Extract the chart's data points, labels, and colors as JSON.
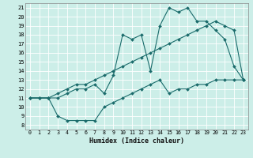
{
  "xlabel": "Humidex (Indice chaleur)",
  "ylabel": "",
  "background_color": "#cceee8",
  "line_color": "#1a6b6b",
  "xlim": [
    -0.5,
    23.5
  ],
  "ylim": [
    7.5,
    21.5
  ],
  "yticks": [
    8,
    9,
    10,
    11,
    12,
    13,
    14,
    15,
    16,
    17,
    18,
    19,
    20,
    21
  ],
  "xticks": [
    0,
    1,
    2,
    3,
    4,
    5,
    6,
    7,
    8,
    9,
    10,
    11,
    12,
    13,
    14,
    15,
    16,
    17,
    18,
    19,
    20,
    21,
    22,
    23
  ],
  "series1_x": [
    0,
    1,
    2,
    3,
    4,
    5,
    6,
    7,
    8,
    9,
    10,
    11,
    12,
    13,
    14,
    15,
    16,
    17,
    18,
    19,
    20,
    21,
    22,
    23
  ],
  "series1_y": [
    11.0,
    11.0,
    11.0,
    11.0,
    11.5,
    12.0,
    12.0,
    12.5,
    11.5,
    13.5,
    18.0,
    17.5,
    18.0,
    14.0,
    19.0,
    21.0,
    20.5,
    21.0,
    19.5,
    19.5,
    18.5,
    17.5,
    14.5,
    13.0
  ],
  "series2_x": [
    0,
    1,
    2,
    3,
    4,
    5,
    6,
    7,
    8,
    9,
    10,
    11,
    12,
    13,
    14,
    15,
    16,
    17,
    18,
    19,
    20,
    21,
    22,
    23
  ],
  "series2_y": [
    11.0,
    11.0,
    11.0,
    11.5,
    12.0,
    12.5,
    12.5,
    13.0,
    13.5,
    14.0,
    14.5,
    15.0,
    15.5,
    16.0,
    16.5,
    17.0,
    17.5,
    18.0,
    18.5,
    19.0,
    19.5,
    19.0,
    18.5,
    13.0
  ],
  "series3_x": [
    0,
    1,
    2,
    3,
    4,
    5,
    6,
    7,
    8,
    9,
    10,
    11,
    12,
    13,
    14,
    15,
    16,
    17,
    18,
    19,
    20,
    21,
    22,
    23
  ],
  "series3_y": [
    11.0,
    11.0,
    11.0,
    9.0,
    8.5,
    8.5,
    8.5,
    8.5,
    10.0,
    10.5,
    11.0,
    11.5,
    12.0,
    12.5,
    13.0,
    11.5,
    12.0,
    12.0,
    12.5,
    12.5,
    13.0,
    13.0,
    13.0,
    13.0
  ]
}
